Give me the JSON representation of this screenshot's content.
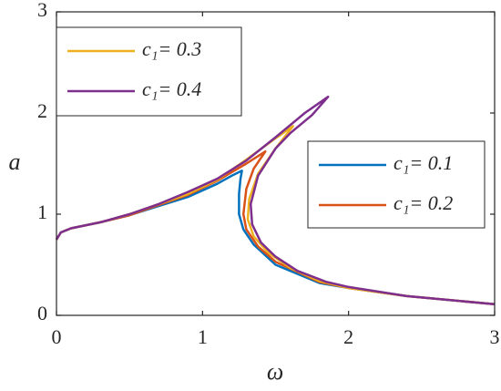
{
  "chart_data": {
    "type": "line",
    "xlabel": "ω",
    "ylabel": "a",
    "xlim": [
      0,
      3
    ],
    "xticks": [
      0,
      1,
      2,
      3
    ],
    "ylim": [
      0,
      3
    ],
    "yticks": [
      0,
      1,
      2,
      3
    ],
    "grid": false,
    "series": [
      {
        "name": "c₁= 0.1",
        "color": "#0072BD",
        "x": [
          0,
          0.03,
          0.1,
          0.3,
          0.5,
          0.7,
          0.9,
          1.1,
          1.2,
          1.27,
          1.26,
          1.25,
          1.25,
          1.28,
          1.35,
          1.5,
          1.8,
          2.0,
          2.4,
          3.0
        ],
        "y": [
          0.75,
          0.82,
          0.86,
          0.92,
          0.99,
          1.08,
          1.17,
          1.3,
          1.38,
          1.43,
          1.35,
          1.2,
          1.0,
          0.85,
          0.7,
          0.5,
          0.32,
          0.27,
          0.19,
          0.11
        ]
      },
      {
        "name": "c₁= 0.2",
        "color": "#D95319",
        "x": [
          0,
          0.03,
          0.1,
          0.3,
          0.5,
          0.7,
          0.9,
          1.1,
          1.3,
          1.43,
          1.35,
          1.3,
          1.28,
          1.3,
          1.38,
          1.5,
          1.8,
          2.0,
          2.4,
          3.0
        ],
        "y": [
          0.75,
          0.82,
          0.86,
          0.92,
          0.99,
          1.09,
          1.19,
          1.33,
          1.5,
          1.62,
          1.45,
          1.25,
          1.0,
          0.85,
          0.68,
          0.53,
          0.33,
          0.27,
          0.19,
          0.11
        ]
      },
      {
        "name": "c₁= 0.3",
        "color": "#EDB120",
        "x": [
          0,
          0.03,
          0.1,
          0.3,
          0.5,
          0.7,
          0.9,
          1.1,
          1.3,
          1.5,
          1.62,
          1.5,
          1.38,
          1.32,
          1.31,
          1.35,
          1.45,
          1.6,
          1.8,
          2.0,
          2.4,
          3.0
        ],
        "y": [
          0.75,
          0.82,
          0.86,
          0.92,
          1.0,
          1.1,
          1.2,
          1.34,
          1.54,
          1.75,
          1.87,
          1.65,
          1.4,
          1.15,
          0.95,
          0.78,
          0.62,
          0.47,
          0.34,
          0.27,
          0.19,
          0.11
        ]
      },
      {
        "name": "c₁= 0.4",
        "color": "#7E2F8E",
        "x": [
          0,
          0.03,
          0.1,
          0.3,
          0.5,
          0.7,
          0.9,
          1.1,
          1.3,
          1.5,
          1.7,
          1.86,
          1.75,
          1.6,
          1.5,
          1.38,
          1.33,
          1.34,
          1.4,
          1.5,
          1.65,
          1.85,
          2.0,
          2.4,
          3.0
        ],
        "y": [
          0.75,
          0.82,
          0.86,
          0.92,
          1.0,
          1.1,
          1.22,
          1.35,
          1.53,
          1.76,
          2.0,
          2.16,
          1.98,
          1.8,
          1.65,
          1.38,
          1.1,
          0.9,
          0.72,
          0.58,
          0.44,
          0.33,
          0.28,
          0.19,
          0.11
        ]
      }
    ],
    "legend": [
      {
        "entries": [
          2,
          3
        ],
        "loc": "upper left"
      },
      {
        "entries": [
          0,
          1
        ],
        "loc": "center right"
      }
    ]
  }
}
